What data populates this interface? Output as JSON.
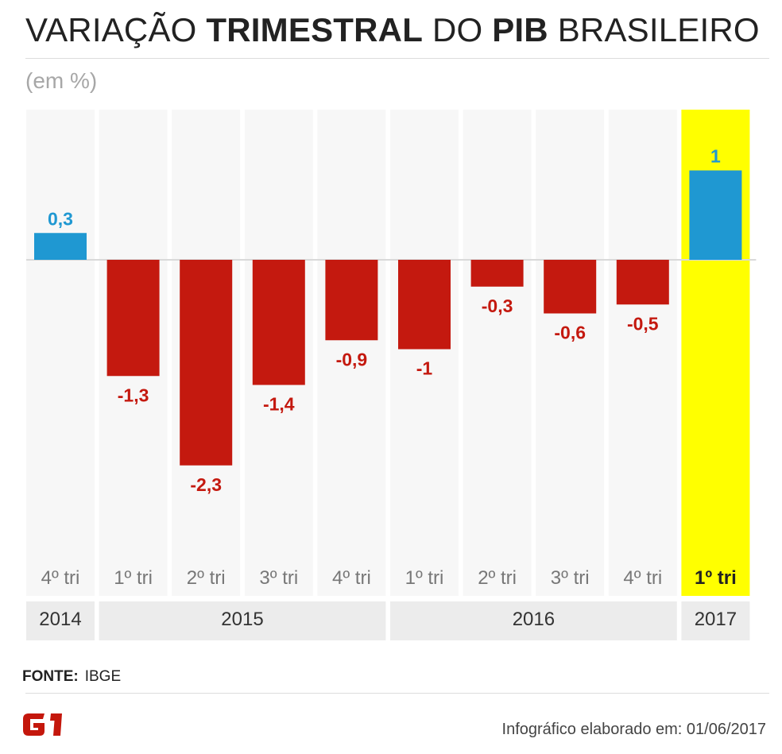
{
  "header": {
    "title_parts": [
      "VARIAÇÃO ",
      "TRIMESTRAL",
      " DO ",
      "PIB",
      " BRASILEIRO"
    ],
    "subtitle": "(em %)"
  },
  "chart_data": {
    "type": "bar",
    "title": "VARIAÇÃO TRIMESTRAL DO PIB BRASILEIRO",
    "subtitle": "(em %)",
    "categories": [
      "4º tri",
      "1º tri",
      "2º tri",
      "3º tri",
      "4º tri",
      "1º tri",
      "2º tri",
      "3º tri",
      "4º tri",
      "1º tri"
    ],
    "years": [
      {
        "label": "2014",
        "count": 1
      },
      {
        "label": "2015",
        "count": 4
      },
      {
        "label": "2016",
        "count": 4
      },
      {
        "label": "2017",
        "count": 1
      }
    ],
    "values": [
      0.3,
      -1.3,
      -2.3,
      -1.4,
      -0.9,
      -1,
      -0.3,
      -0.6,
      -0.5,
      1
    ],
    "value_labels": [
      "0,3",
      "-1,3",
      "-2,3",
      "-1,4",
      "-0,9",
      "-1",
      "-0,3",
      "-0,6",
      "-0,5",
      "1"
    ],
    "highlight_index": 9,
    "colors": {
      "positive": "#1f98d2",
      "negative": "#c4190f",
      "highlight": "#ffff00",
      "column_bg": "#f7f7f7",
      "year_bg": "#ececec"
    },
    "ylim": [
      -3.5,
      1.7
    ],
    "grid": false
  },
  "footer": {
    "source_label": "FONTE:",
    "source_value": "IBGE",
    "logo_text": "G1",
    "credit": "Infográfico elaborado em: 01/06/2017"
  }
}
